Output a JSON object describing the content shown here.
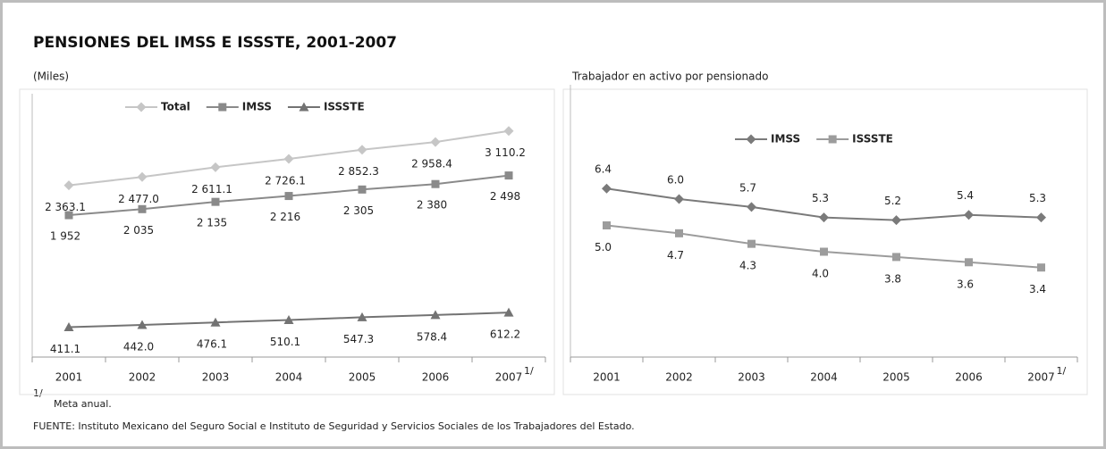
{
  "title": "PENSIONES DEL IMSS E ISSSTE, 2001-2007",
  "footnote": {
    "marker": "1/",
    "text": "Meta anual."
  },
  "source": "FUENTE: Instituto Mexicano del Seguro Social e Instituto de Seguridad y Servicios Sociales de los Trabajadores del Estado.",
  "chart_data": [
    {
      "type": "line",
      "subtitle": "(Miles)",
      "categories": [
        "2001",
        "2002",
        "2003",
        "2004",
        "2005",
        "2006",
        "2007"
      ],
      "note_marker": "1/",
      "ylim": [
        0,
        3500
      ],
      "series": [
        {
          "name": "Total",
          "color": "#c6c6c6",
          "marker": "diamond",
          "values": [
            2363.1,
            2477.0,
            2611.1,
            2726.1,
            2852.3,
            2958.4,
            3110.2
          ],
          "value_labels": [
            "2 363.1",
            "2 477.0",
            "2 611.1",
            "2 726.1",
            "2 852.3",
            "2 958.4",
            "3 110.2"
          ]
        },
        {
          "name": "IMSS",
          "color": "#8a8a8a",
          "marker": "square",
          "values": [
            1952,
            2035,
            2135,
            2216,
            2305,
            2380,
            2498
          ],
          "value_labels": [
            "1 952",
            "2 035",
            "2 135",
            "2 216",
            "2 305",
            "2 380",
            "2 498"
          ]
        },
        {
          "name": "ISSSTE",
          "color": "#737373",
          "marker": "triangle",
          "values": [
            411.1,
            442.0,
            476.1,
            510.1,
            547.3,
            578.4,
            612.2
          ],
          "value_labels": [
            "411.1",
            "442.0",
            "476.1",
            "510.1",
            "547.3",
            "578.4",
            "612.2"
          ]
        }
      ]
    },
    {
      "type": "line",
      "subtitle": "Trabajador en activo por pensionado",
      "categories": [
        "2001",
        "2002",
        "2003",
        "2004",
        "2005",
        "2006",
        "2007"
      ],
      "note_marker": "1/",
      "ylim": [
        0,
        10
      ],
      "series": [
        {
          "name": "IMSS",
          "color": "#7a7a7a",
          "marker": "diamond",
          "values": [
            6.4,
            6.0,
            5.7,
            5.3,
            5.2,
            5.4,
            5.3
          ],
          "value_labels": [
            "6.4",
            "6.0",
            "5.7",
            "5.3",
            "5.2",
            "5.4",
            "5.3"
          ]
        },
        {
          "name": "ISSSTE",
          "color": "#9c9c9c",
          "marker": "square",
          "values": [
            5.0,
            4.7,
            4.3,
            4.0,
            3.8,
            3.6,
            3.4
          ],
          "value_labels": [
            "5.0",
            "4.7",
            "4.3",
            "4.0",
            "3.8",
            "3.6",
            "3.4"
          ]
        }
      ]
    }
  ]
}
